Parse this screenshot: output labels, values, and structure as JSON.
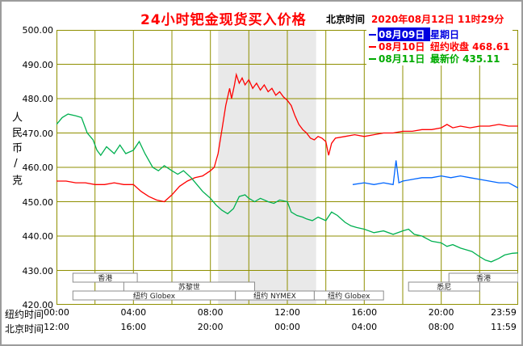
{
  "header": {
    "title": "24小时钯金现货买入价格",
    "clock_label": "北京时间",
    "clock_value": "2020年08月12日 11时29分"
  },
  "y_axis": {
    "unit_label": "人民币/克",
    "ticks": [
      "500.00",
      "490.00",
      "480.00",
      "470.00",
      "460.00",
      "450.00",
      "440.00",
      "430.00",
      "420.00"
    ]
  },
  "x_axis": {
    "ny_label": "纽约时间",
    "bj_label": "北京时间",
    "tick_hours": [
      0,
      4,
      8,
      12,
      16,
      20,
      24
    ],
    "ny_ticks": [
      "00:00",
      "04:00",
      "08:00",
      "12:00",
      "16:00",
      "20:00",
      "23:59"
    ],
    "bj_ticks": [
      "12:00",
      "16:00",
      "20:00",
      "00:00",
      "04:00",
      "08:00",
      "11:59"
    ]
  },
  "legend": [
    {
      "label": "08月09日",
      "detail": "星期日",
      "color": "#0000e0",
      "chip": true
    },
    {
      "label": "08月10日",
      "detail": "纽约收盘 468.61",
      "color": "#ff0000",
      "chip": false
    },
    {
      "label": "08月11日",
      "detail": "最新价 435.11",
      "color": "#00aa00",
      "chip": false
    }
  ],
  "chart_data": {
    "type": "line",
    "title": "24小时钯金现货买入价格",
    "ylabel": "人民币/克",
    "ylim": [
      420,
      500
    ],
    "xlim_hours": [
      0,
      24
    ],
    "grid": true,
    "grid_color": "#8f8f00",
    "band": {
      "start": 8.4,
      "end": 13.5,
      "color": "#e9e9e9"
    },
    "series": [
      {
        "name": "08月09日 星期日",
        "color": "#0066ff",
        "points": [
          [
            15.4,
            455
          ],
          [
            16,
            455.5
          ],
          [
            16.5,
            455
          ],
          [
            17,
            455.5
          ],
          [
            17.5,
            455
          ],
          [
            17.65,
            462
          ],
          [
            17.8,
            455.5
          ],
          [
            18,
            456
          ],
          [
            18.5,
            456.5
          ],
          [
            19,
            457
          ],
          [
            19.5,
            457
          ],
          [
            20,
            457.5
          ],
          [
            20.5,
            457
          ],
          [
            21,
            457.5
          ],
          [
            21.5,
            457
          ],
          [
            22,
            456.5
          ],
          [
            22.5,
            456
          ],
          [
            23,
            455.5
          ],
          [
            23.5,
            455.5
          ],
          [
            24,
            454
          ]
        ]
      },
      {
        "name": "08月10日 纽约收盘 468.61",
        "color": "#ff0000",
        "points": [
          [
            0,
            456
          ],
          [
            0.5,
            456
          ],
          [
            1,
            455.5
          ],
          [
            1.5,
            455.5
          ],
          [
            2,
            455
          ],
          [
            2.5,
            455
          ],
          [
            3,
            455.5
          ],
          [
            3.5,
            455
          ],
          [
            4,
            455
          ],
          [
            4.4,
            453
          ],
          [
            4.8,
            451.5
          ],
          [
            5.2,
            450.5
          ],
          [
            5.6,
            450
          ],
          [
            6,
            452
          ],
          [
            6.4,
            454.5
          ],
          [
            6.8,
            456
          ],
          [
            7.2,
            457
          ],
          [
            7.6,
            457.5
          ],
          [
            8,
            459
          ],
          [
            8.2,
            460
          ],
          [
            8.4,
            464
          ],
          [
            8.6,
            471
          ],
          [
            8.8,
            478
          ],
          [
            9,
            483
          ],
          [
            9.1,
            480
          ],
          [
            9.25,
            484
          ],
          [
            9.35,
            487
          ],
          [
            9.5,
            484.5
          ],
          [
            9.65,
            486
          ],
          [
            9.8,
            484
          ],
          [
            10,
            485.5
          ],
          [
            10.2,
            483
          ],
          [
            10.4,
            484.5
          ],
          [
            10.6,
            482.5
          ],
          [
            10.8,
            484
          ],
          [
            11,
            482
          ],
          [
            11.2,
            483
          ],
          [
            11.4,
            481
          ],
          [
            11.6,
            482
          ],
          [
            11.8,
            480.5
          ],
          [
            12,
            479.5
          ],
          [
            12.2,
            478
          ],
          [
            12.4,
            475
          ],
          [
            12.6,
            472.5
          ],
          [
            12.8,
            471
          ],
          [
            13,
            470
          ],
          [
            13.2,
            468.5
          ],
          [
            13.4,
            468
          ],
          [
            13.6,
            469
          ],
          [
            13.8,
            468.5
          ],
          [
            14,
            467.5
          ],
          [
            14.15,
            463.5
          ],
          [
            14.3,
            467
          ],
          [
            14.5,
            468.5
          ],
          [
            15,
            469
          ],
          [
            15.5,
            469.5
          ],
          [
            16,
            469
          ],
          [
            16.5,
            469.5
          ],
          [
            17,
            470
          ],
          [
            17.5,
            470
          ],
          [
            18,
            470.5
          ],
          [
            18.5,
            470.5
          ],
          [
            19,
            471
          ],
          [
            19.5,
            471
          ],
          [
            20,
            471.5
          ],
          [
            20.3,
            472.5
          ],
          [
            20.6,
            471.5
          ],
          [
            21,
            472
          ],
          [
            21.5,
            471.5
          ],
          [
            22,
            472
          ],
          [
            22.5,
            472
          ],
          [
            23,
            472.5
          ],
          [
            23.5,
            472
          ],
          [
            24,
            472
          ]
        ]
      },
      {
        "name": "08月11日 最新价 435.11",
        "color": "#00b050",
        "points": [
          [
            0,
            472.5
          ],
          [
            0.3,
            474.5
          ],
          [
            0.6,
            475.5
          ],
          [
            1,
            475
          ],
          [
            1.3,
            474.5
          ],
          [
            1.6,
            470
          ],
          [
            1.9,
            468
          ],
          [
            2.1,
            465
          ],
          [
            2.3,
            463.5
          ],
          [
            2.6,
            466
          ],
          [
            3,
            464
          ],
          [
            3.3,
            466.5
          ],
          [
            3.6,
            464
          ],
          [
            4,
            465
          ],
          [
            4.3,
            467.5
          ],
          [
            4.6,
            464
          ],
          [
            5,
            460
          ],
          [
            5.3,
            459
          ],
          [
            5.6,
            460.5
          ],
          [
            6,
            459
          ],
          [
            6.3,
            458
          ],
          [
            6.6,
            459
          ],
          [
            7,
            457
          ],
          [
            7.3,
            455
          ],
          [
            7.6,
            453
          ],
          [
            8,
            451
          ],
          [
            8.3,
            449
          ],
          [
            8.6,
            447.5
          ],
          [
            8.9,
            446.5
          ],
          [
            9.2,
            448
          ],
          [
            9.5,
            451.5
          ],
          [
            9.8,
            452
          ],
          [
            10,
            451
          ],
          [
            10.3,
            450
          ],
          [
            10.6,
            451
          ],
          [
            11,
            450
          ],
          [
            11.3,
            449.5
          ],
          [
            11.6,
            450.5
          ],
          [
            12,
            450
          ],
          [
            12.2,
            447
          ],
          [
            12.5,
            446
          ],
          [
            12.8,
            445.5
          ],
          [
            13,
            445
          ],
          [
            13.3,
            444.5
          ],
          [
            13.6,
            445.5
          ],
          [
            14,
            444.5
          ],
          [
            14.3,
            447
          ],
          [
            14.6,
            446
          ],
          [
            15,
            444
          ],
          [
            15.3,
            443
          ],
          [
            15.6,
            442.5
          ],
          [
            16,
            442
          ],
          [
            16.5,
            441
          ],
          [
            17,
            441.5
          ],
          [
            17.5,
            440.5
          ],
          [
            18,
            441.5
          ],
          [
            18.3,
            442
          ],
          [
            18.6,
            440.5
          ],
          [
            19,
            440
          ],
          [
            19.5,
            438.5
          ],
          [
            20,
            438
          ],
          [
            20.3,
            437
          ],
          [
            20.6,
            437.5
          ],
          [
            21,
            436.5
          ],
          [
            21.3,
            436
          ],
          [
            21.6,
            435.5
          ],
          [
            22,
            434
          ],
          [
            22.3,
            433
          ],
          [
            22.6,
            432.5
          ],
          [
            23,
            433.5
          ],
          [
            23.3,
            434.5
          ],
          [
            23.7,
            435
          ],
          [
            24,
            435.11
          ]
        ]
      }
    ],
    "sessions": [
      {
        "label": "香港",
        "row": 0,
        "start": 0.85,
        "end": 4.2
      },
      {
        "label": "苏黎世",
        "row": 1,
        "start": 3.5,
        "end": 10.3
      },
      {
        "label": "纽约 Globex",
        "row": 2,
        "start": 0.85,
        "end": 9.3
      },
      {
        "label": "纽约 NYMEX",
        "row": 2,
        "start": 9.3,
        "end": 13.4
      },
      {
        "label": "纽约 Globex",
        "row": 2,
        "start": 13.4,
        "end": 17.0
      },
      {
        "label": "悉尼",
        "row": 1,
        "start": 18.3,
        "end": 22.0
      },
      {
        "label": "香港",
        "row": 0,
        "start": 20.4,
        "end": 24.0
      }
    ]
  }
}
